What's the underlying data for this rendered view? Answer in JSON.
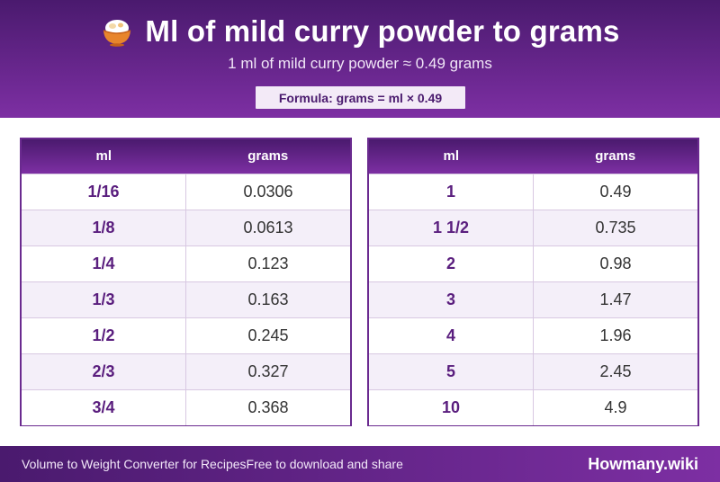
{
  "header": {
    "title": "Ml of mild curry powder to grams",
    "title_icon": "curry-bowl-icon",
    "subtitle": "1 ml of mild curry powder ≈ 0.49 grams",
    "formula": "Formula: grams = ml × 0.49"
  },
  "tables": {
    "left": {
      "headers": [
        "ml",
        "grams"
      ],
      "rows": [
        [
          "1/16",
          "0.0306"
        ],
        [
          "1/8",
          "0.0613"
        ],
        [
          "1/4",
          "0.123"
        ],
        [
          "1/3",
          "0.163"
        ],
        [
          "1/2",
          "0.245"
        ],
        [
          "2/3",
          "0.327"
        ],
        [
          "3/4",
          "0.368"
        ]
      ]
    },
    "right": {
      "headers": [
        "ml",
        "grams"
      ],
      "rows": [
        [
          "1",
          "0.49"
        ],
        [
          "1 1/2",
          "0.735"
        ],
        [
          "2",
          "0.98"
        ],
        [
          "3",
          "1.47"
        ],
        [
          "4",
          "1.96"
        ],
        [
          "5",
          "2.45"
        ],
        [
          "10",
          "4.9"
        ]
      ]
    }
  },
  "footer": {
    "left": "Volume to Weight Converter for Recipes",
    "mid": "Free to download and share",
    "brand": "Howmany.wiki"
  },
  "colors": {
    "primary": "#4a1a6e",
    "accent": "#7d2fa3"
  }
}
